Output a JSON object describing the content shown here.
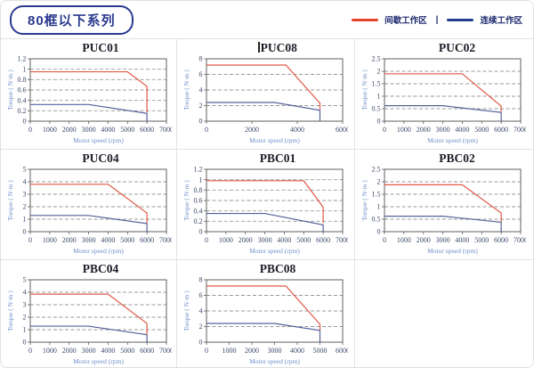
{
  "header": {
    "badge": "80框以下系列",
    "legend": {
      "items": [
        {
          "label": "间歇工作区",
          "color": "#e8432a"
        },
        {
          "label": "连续工作区",
          "color": "#23408f"
        }
      ],
      "separator": "|"
    }
  },
  "colors": {
    "intermittent_line": "#e15a47",
    "continuous_line": "#56629a",
    "navy_accent": "#2b3a8f",
    "gridline": "#999999"
  },
  "chart_data": [
    {
      "type": "line",
      "title": "PUC01",
      "title_cursor": false,
      "xlabel": "Motor speed (rpm)",
      "ylabel": "Torque ( N·m )",
      "xlim": [
        0,
        7000
      ],
      "ylim": [
        0,
        1.2
      ],
      "xticks": [
        0,
        1000,
        2000,
        3000,
        4000,
        5000,
        6000,
        7000
      ],
      "yticks": [
        0,
        0.2,
        0.4,
        0.6,
        0.8,
        1,
        1.2
      ],
      "grid": "dashed-horizontal",
      "legend_position": "none",
      "series": [
        {
          "name": "间歇工作区",
          "color": "#e15a47",
          "points": [
            [
              0,
              0.95
            ],
            [
              5000,
              0.95
            ],
            [
              6000,
              0.67
            ],
            [
              6000,
              0.17
            ]
          ]
        },
        {
          "name": "连续工作区",
          "color": "#56629a",
          "points": [
            [
              0,
              0.32
            ],
            [
              3000,
              0.32
            ],
            [
              6000,
              0.15
            ],
            [
              6000,
              0
            ]
          ]
        }
      ]
    },
    {
      "type": "line",
      "title": "PUC08",
      "title_cursor": true,
      "xlabel": "Motor speed (rpm)",
      "ylabel": "Torque ( N·m )",
      "xlim": [
        0,
        6000
      ],
      "ylim": [
        0,
        8
      ],
      "xticks": [
        0,
        2000,
        4000,
        6000
      ],
      "yticks": [
        0,
        2,
        4,
        6,
        8
      ],
      "grid": "dashed-horizontal",
      "legend_position": "none",
      "series": [
        {
          "name": "间歇工作区",
          "color": "#e15a47",
          "points": [
            [
              0,
              7.2
            ],
            [
              3500,
              7.2
            ],
            [
              5000,
              2.3
            ],
            [
              5000,
              1.5
            ]
          ]
        },
        {
          "name": "连续工作区",
          "color": "#56629a",
          "points": [
            [
              0,
              2.4
            ],
            [
              3000,
              2.4
            ],
            [
              5000,
              1.4
            ],
            [
              5000,
              0
            ]
          ]
        }
      ]
    },
    {
      "type": "line",
      "title": "PUC02",
      "title_cursor": false,
      "xlabel": "Motor speed (rpm)",
      "ylabel": "Torque ( N·m )",
      "xlim": [
        0,
        7000
      ],
      "ylim": [
        0,
        2.5
      ],
      "xticks": [
        0,
        1000,
        2000,
        3000,
        4000,
        5000,
        6000,
        7000
      ],
      "yticks": [
        0,
        0.5,
        1,
        1.5,
        2,
        2.5
      ],
      "grid": "dashed-horizontal",
      "legend_position": "none",
      "series": [
        {
          "name": "间歇工作区",
          "color": "#e15a47",
          "points": [
            [
              0,
              1.9
            ],
            [
              4000,
              1.9
            ],
            [
              6000,
              0.6
            ],
            [
              6000,
              0.38
            ]
          ]
        },
        {
          "name": "连续工作区",
          "color": "#56629a",
          "points": [
            [
              0,
              0.62
            ],
            [
              3000,
              0.62
            ],
            [
              6000,
              0.35
            ],
            [
              6000,
              0
            ]
          ]
        }
      ]
    },
    {
      "type": "line",
      "title": "PUC04",
      "title_cursor": false,
      "xlabel": "Motor speed (rpm)",
      "ylabel": "Torque ( N·m )",
      "xlim": [
        0,
        7000
      ],
      "ylim": [
        0,
        5
      ],
      "xticks": [
        0,
        1000,
        2000,
        3000,
        4000,
        5000,
        6000,
        7000
      ],
      "yticks": [
        0,
        1,
        2,
        3,
        4,
        5
      ],
      "grid": "dashed-horizontal",
      "legend_position": "none",
      "series": [
        {
          "name": "间歇工作区",
          "color": "#e15a47",
          "points": [
            [
              0,
              3.8
            ],
            [
              4000,
              3.8
            ],
            [
              6000,
              1.5
            ],
            [
              6000,
              0.7
            ]
          ]
        },
        {
          "name": "连续工作区",
          "color": "#56629a",
          "points": [
            [
              0,
              1.3
            ],
            [
              3000,
              1.3
            ],
            [
              6000,
              0.65
            ],
            [
              6000,
              0
            ]
          ]
        }
      ]
    },
    {
      "type": "line",
      "title": "PBC01",
      "title_cursor": false,
      "xlabel": "Motor speed (rpm)",
      "ylabel": "Torque ( N·m )",
      "xlim": [
        0,
        7000
      ],
      "ylim": [
        0,
        1.2
      ],
      "xticks": [
        0,
        1000,
        2000,
        3000,
        4000,
        5000,
        6000,
        7000
      ],
      "yticks": [
        0,
        0.2,
        0.4,
        0.6,
        0.8,
        1,
        1.2
      ],
      "grid": "dashed-horizontal",
      "legend_position": "none",
      "series": [
        {
          "name": "间歇工作区",
          "color": "#e15a47",
          "points": [
            [
              0,
              0.98
            ],
            [
              5000,
              0.98
            ],
            [
              6000,
              0.47
            ],
            [
              6000,
              0.17
            ]
          ]
        },
        {
          "name": "连续工作区",
          "color": "#56629a",
          "points": [
            [
              0,
              0.35
            ],
            [
              3000,
              0.35
            ],
            [
              6000,
              0.13
            ],
            [
              6000,
              0
            ]
          ]
        }
      ]
    },
    {
      "type": "line",
      "title": "PBC02",
      "title_cursor": false,
      "xlabel": "Motor speed (rpm)",
      "ylabel": "Torque ( N·m )",
      "xlim": [
        0,
        7000
      ],
      "ylim": [
        0,
        2.5
      ],
      "xticks": [
        0,
        1000,
        2000,
        3000,
        4000,
        5000,
        6000,
        7000
      ],
      "yticks": [
        0,
        0.5,
        1,
        1.5,
        2,
        2.5
      ],
      "grid": "dashed-horizontal",
      "legend_position": "none",
      "series": [
        {
          "name": "间歇工作区",
          "color": "#e15a47",
          "points": [
            [
              0,
              1.88
            ],
            [
              4000,
              1.88
            ],
            [
              6000,
              0.75
            ],
            [
              6000,
              0.4
            ]
          ]
        },
        {
          "name": "连续工作区",
          "color": "#56629a",
          "points": [
            [
              0,
              0.62
            ],
            [
              3000,
              0.62
            ],
            [
              6000,
              0.38
            ],
            [
              6000,
              0
            ]
          ]
        }
      ]
    },
    {
      "type": "line",
      "title": "PBC04",
      "title_cursor": false,
      "xlabel": "Motor speed (rpm)",
      "ylabel": "Torque ( N·m )",
      "xlim": [
        0,
        7000
      ],
      "ylim": [
        0,
        5
      ],
      "xticks": [
        0,
        1000,
        2000,
        3000,
        4000,
        5000,
        6000,
        7000
      ],
      "yticks": [
        0,
        1,
        2,
        3,
        4,
        5
      ],
      "grid": "dashed-horizontal",
      "legend_position": "none",
      "series": [
        {
          "name": "间歇工作区",
          "color": "#e15a47",
          "points": [
            [
              0,
              3.85
            ],
            [
              4000,
              3.85
            ],
            [
              6000,
              1.5
            ],
            [
              6000,
              0.65
            ]
          ]
        },
        {
          "name": "连续工作区",
          "color": "#56629a",
          "points": [
            [
              0,
              1.28
            ],
            [
              3000,
              1.28
            ],
            [
              6000,
              0.6
            ],
            [
              6000,
              0
            ]
          ]
        }
      ]
    },
    {
      "type": "line",
      "title": "PBC08",
      "title_cursor": false,
      "xlabel": "Motor speed (rpm)",
      "ylabel": "Torque ( N·m )",
      "xlim": [
        0,
        6000
      ],
      "ylim": [
        0,
        8
      ],
      "xticks": [
        0,
        1000,
        2000,
        3000,
        4000,
        5000,
        6000
      ],
      "yticks": [
        0,
        2,
        4,
        6,
        8
      ],
      "grid": "dashed-horizontal",
      "legend_position": "none",
      "series": [
        {
          "name": "间歇工作区",
          "color": "#e15a47",
          "points": [
            [
              0,
              7.2
            ],
            [
              3500,
              7.2
            ],
            [
              5000,
              2.3
            ],
            [
              5000,
              1.5
            ]
          ]
        },
        {
          "name": "连续工作区",
          "color": "#56629a",
          "points": [
            [
              0,
              2.4
            ],
            [
              3000,
              2.4
            ],
            [
              5000,
              1.5
            ],
            [
              5000,
              0
            ]
          ]
        }
      ]
    }
  ]
}
